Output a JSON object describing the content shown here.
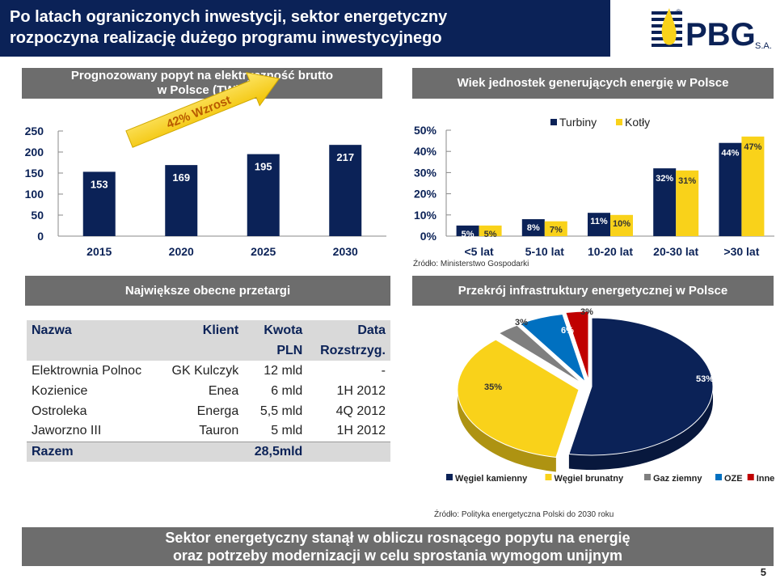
{
  "slide": {
    "title_line1": "Po latach ograniczonych inwestycji, sektor energetyczny",
    "title_line2": "rozpoczyna realizację dużego programu inwestycyjnego",
    "logo_text": "PBG",
    "logo_suffix": "S.A.",
    "logo_reg": "®",
    "footer_line1": "Sektor energetyczny stanął w obliczu rosnącego popytu na energię",
    "footer_line2": "oraz potrzeby modernizacji w celu sprostania wymogom unijnym",
    "page_number": "5"
  },
  "chart_data": [
    {
      "type": "bar",
      "title_line1": "Prognozowany popyt na elektryczność brutto",
      "title_line2": "w Polsce (TWh)",
      "categories": [
        "2015",
        "2020",
        "2025",
        "2030"
      ],
      "values": [
        153,
        169,
        195,
        217
      ],
      "labels": [
        "153",
        "169",
        "195",
        "217"
      ],
      "ylim": [
        0,
        250
      ],
      "yticks": [
        "0",
        "50",
        "100",
        "150",
        "200",
        "250"
      ],
      "annotation": "42% Wzrost",
      "bar_color": "#0b2257",
      "arrow_color": "#f9d21a"
    },
    {
      "type": "bar",
      "title": "Wiek jednostek generujących energię w Polsce",
      "categories": [
        "<5 lat",
        "5-10 lat",
        "10-20 lat",
        "20-30 lat",
        ">30 lat"
      ],
      "series": [
        {
          "name": "Turbiny",
          "values": [
            5,
            8,
            11,
            32,
            44
          ],
          "labels": [
            "5%",
            "8%",
            "11%",
            "32%",
            "44%"
          ],
          "color": "#0b2257"
        },
        {
          "name": "Kotły",
          "values": [
            5,
            7,
            10,
            31,
            47
          ],
          "labels": [
            "5%",
            "7%",
            "10%",
            "31%",
            "47%"
          ],
          "color": "#f9d21a"
        }
      ],
      "ylim": [
        0,
        50
      ],
      "yticks": [
        "0%",
        "10%",
        "20%",
        "30%",
        "40%",
        "50%"
      ],
      "legend": "top",
      "source": "Źródło: Ministerstwo Gospodarki"
    },
    {
      "type": "pie",
      "title": "Przekrój infrastruktury energetycznej w Polsce",
      "slices": [
        {
          "name": "Węgiel kamienny",
          "value": 53,
          "label": "53%",
          "color": "#0b2257"
        },
        {
          "name": "Węgiel brunatny",
          "value": 35,
          "label": "35%",
          "color": "#f9d21a"
        },
        {
          "name": "Gaz ziemny",
          "value": 3,
          "label": "3%",
          "color": "#7f7f7f"
        },
        {
          "name": "OZE",
          "value": 6,
          "label": "6%",
          "color": "#0070c0"
        },
        {
          "name": "Inne",
          "value": 3,
          "label": "3%",
          "color": "#c00000"
        }
      ],
      "legend": "bottom",
      "source": "Źródło: Polityka energetyczna Polski do 2030 roku"
    },
    {
      "type": "table",
      "title": "Największe obecne przetargi",
      "header_row1": [
        "Nazwa",
        "Klient",
        "Kwota",
        "Data"
      ],
      "header_row2": [
        "",
        "",
        "PLN",
        "Rozstrzyg."
      ],
      "rows": [
        [
          "Elektrownia Polnoc",
          "GK Kulczyk",
          "12 mld",
          "-"
        ],
        [
          "Kozienice",
          "Enea",
          "6 mld",
          "1H 2012"
        ],
        [
          "Ostroleka",
          "Energa",
          "5,5 mld",
          "4Q 2012"
        ],
        [
          "Jaworzno III",
          "Tauron",
          "5 mld",
          "1H 2012"
        ]
      ],
      "total": [
        "Razem",
        "",
        "28,5mld",
        ""
      ]
    }
  ]
}
